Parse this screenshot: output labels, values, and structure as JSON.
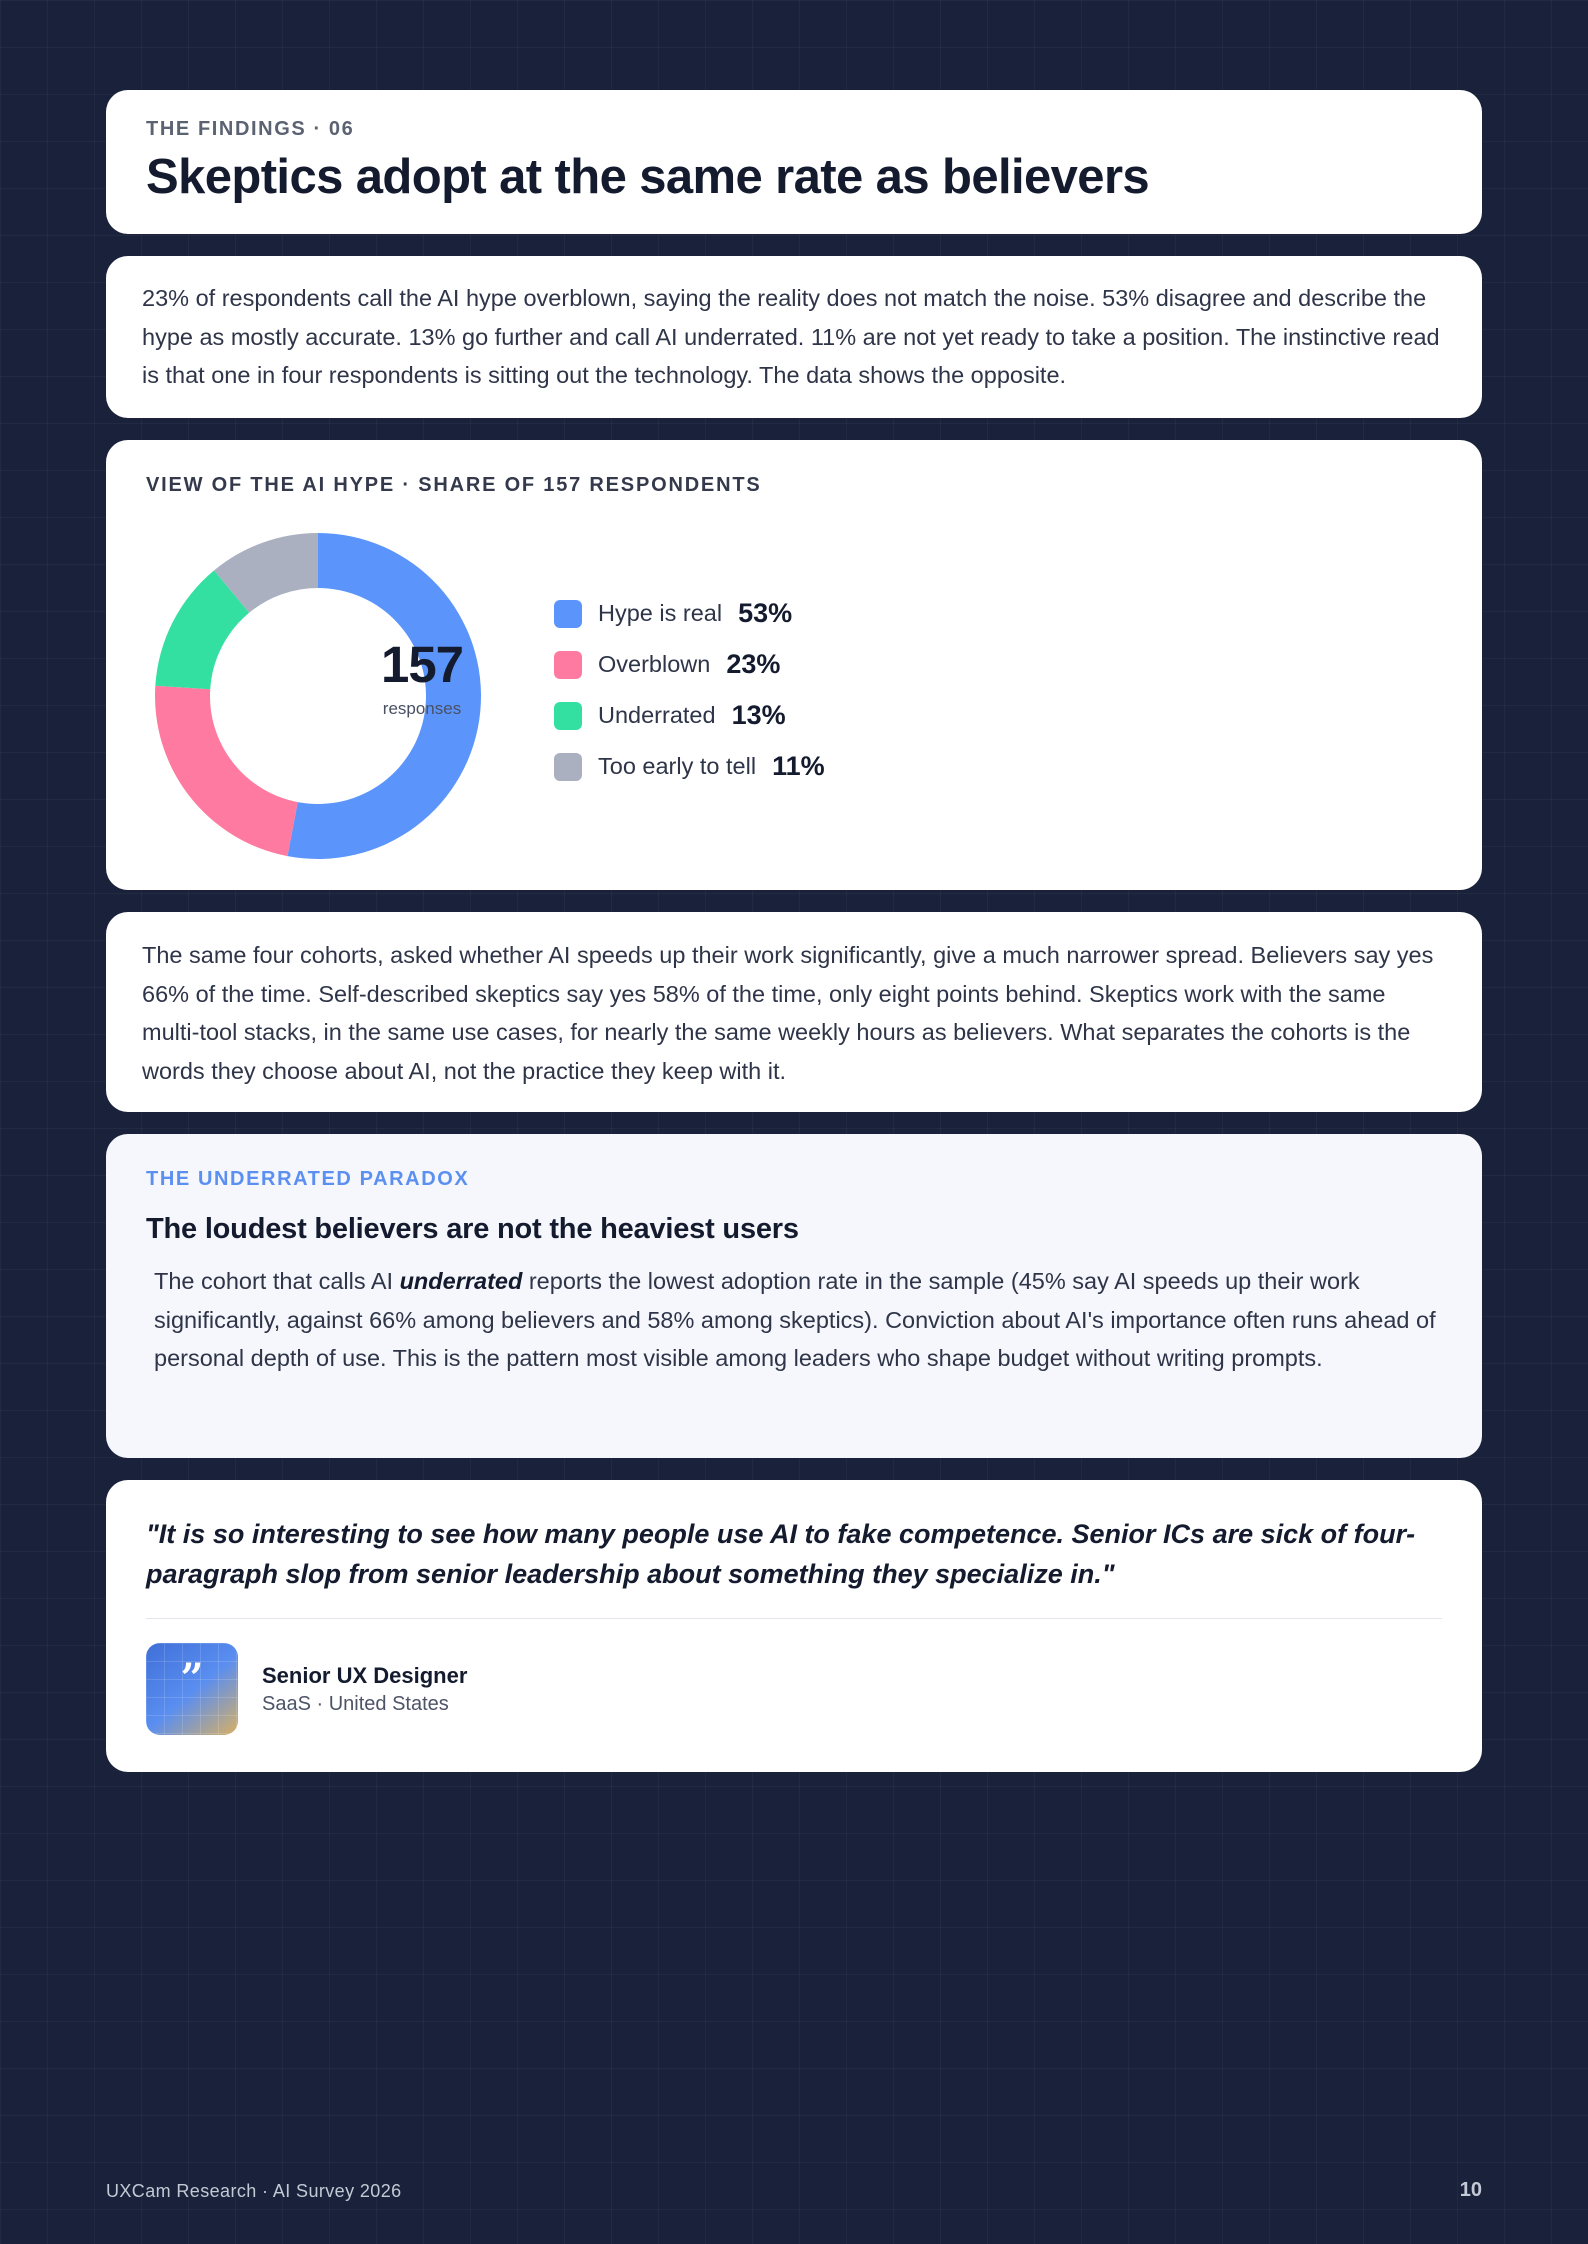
{
  "header": {
    "eyebrow": "THE FINDINGS · 06",
    "title": "Skeptics adopt at the same rate as believers"
  },
  "intro": {
    "text": "23% of respondents call the AI hype overblown, saying the reality does not match the noise. 53% disagree and describe the hype as mostly accurate. 13% go further and call AI underrated. 11% are not yet ready to take a position. The instinctive read is that one in four respondents is sitting out the technology. The data shows the opposite."
  },
  "chart": {
    "eyebrow": "VIEW OF THE AI HYPE · SHARE OF 157 RESPONDENTS",
    "center_value": "157",
    "center_label": "responses",
    "legend": [
      {
        "label": "Hype is real",
        "value": "53%"
      },
      {
        "label": "Overblown",
        "value": "23%"
      },
      {
        "label": "Underrated",
        "value": "13%"
      },
      {
        "label": "Too early to tell",
        "value": "11%"
      }
    ]
  },
  "chart_data": {
    "type": "pie",
    "title": "VIEW OF THE AI HYPE · SHARE OF 157 RESPONDENTS",
    "total": 157,
    "categories": [
      "Hype is real",
      "Overblown",
      "Underrated",
      "Too early to tell"
    ],
    "values": [
      53,
      23,
      13,
      11
    ],
    "unit": "%",
    "colors": [
      "#5b95fb",
      "#ff7aa0",
      "#34e0a1",
      "#aab0bf"
    ],
    "legend_position": "right"
  },
  "cohort": {
    "text": "The same four cohorts, asked whether AI speeds up their work significantly, give a much narrower spread. Believers say yes 66% of the time. Self-described skeptics say yes 58% of the time, only eight points behind. Skeptics work with the same multi-tool stacks, in the same use cases, for nearly the same weekly hours as believers. What separates the cohorts is the words they choose about AI, not the practice they keep with it."
  },
  "paradox": {
    "eyebrow": "THE UNDERRATED PARADOX",
    "heading": "The loudest believers are not the heaviest users",
    "body_before": "The cohort that calls AI ",
    "body_emphasis": "underrated",
    "body_after": " reports the lowest adoption rate in the sample (45% say AI speeds up their work significantly, against 66% among believers and 58% among skeptics). Conviction about AI's importance often runs ahead of personal depth of use. This is the pattern most visible among leaders who shape budget without writing prompts."
  },
  "quote": {
    "text": "\"It is so interesting to see how many people use AI to fake competence. Senior ICs are sick of four-paragraph slop from senior leadership about something they specialize in.\"",
    "icon": "quote-mark-icon",
    "icon_glyph": "”",
    "author_role": "Senior UX Designer",
    "author_org": "SaaS · United States"
  },
  "footer": {
    "source": "UXCam Research · AI Survey 2026",
    "page_number": "10"
  }
}
